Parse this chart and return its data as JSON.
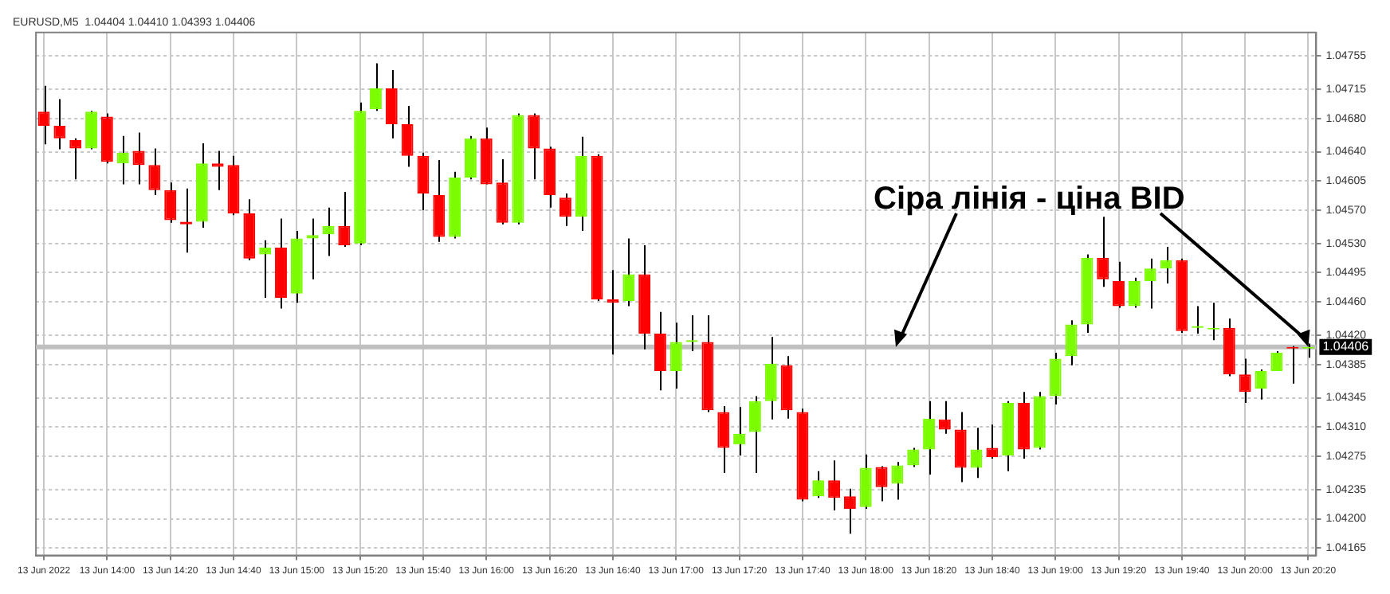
{
  "chart_data": {
    "type": "candlestick",
    "title": "EURUSD,M5  1.04404 1.04410 1.04393 1.04406",
    "annotations": [
      {
        "text": "Сіра лінія - ціна BID",
        "x": "13 Jun 20:20",
        "y": 1.04406
      }
    ],
    "categories": [
      "13 Jun 2022",
      null,
      null,
      null,
      "13 Jun 14:00",
      null,
      null,
      null,
      "13 Jun 14:20",
      null,
      null,
      null,
      "13 Jun 14:40",
      null,
      null,
      null,
      "13 Jun 15:00",
      null,
      null,
      null,
      "13 Jun 15:20",
      null,
      null,
      null,
      "13 Jun 15:40",
      null,
      null,
      null,
      "13 Jun 16:00",
      null,
      null,
      null,
      "13 Jun 16:20",
      null,
      null,
      null,
      "13 Jun 16:40",
      null,
      null,
      null,
      "13 Jun 17:00",
      null,
      null,
      null,
      "13 Jun 17:20",
      null,
      null,
      null,
      "13 Jun 17:40",
      null,
      null,
      null,
      "13 Jun 18:00",
      null,
      null,
      null,
      "13 Jun 18:20",
      null,
      null,
      null,
      "13 Jun 18:40",
      null,
      null,
      null,
      "13 Jun 19:00",
      null,
      null,
      null,
      "13 Jun 19:20",
      null,
      null,
      null,
      "13 Jun 19:40",
      null,
      null,
      null,
      "13 Jun 20:00",
      null,
      null,
      null,
      "13 Jun 20:20"
    ],
    "ohlc": [
      [
        1.04688,
        1.04719,
        1.04649,
        1.04671
      ],
      [
        1.04671,
        1.04703,
        1.04643,
        1.04656
      ],
      [
        1.04654,
        1.04656,
        1.04607,
        1.04644
      ],
      [
        1.04644,
        1.04689,
        1.04643,
        1.04688
      ],
      [
        1.04682,
        1.04686,
        1.04626,
        1.04628
      ],
      [
        1.04626,
        1.04659,
        1.04601,
        1.04639
      ],
      [
        1.04641,
        1.04663,
        1.04601,
        1.04624
      ],
      [
        1.04624,
        1.04644,
        1.04588,
        1.04594
      ],
      [
        1.04594,
        1.04603,
        1.04555,
        1.04558
      ],
      [
        1.04556,
        1.04596,
        1.04519,
        1.04553
      ],
      [
        1.04556,
        1.0465,
        1.04549,
        1.04626
      ],
      [
        1.04626,
        1.04641,
        1.04594,
        1.04622
      ],
      [
        1.04624,
        1.04635,
        1.04564,
        1.04566
      ],
      [
        1.04566,
        1.04583,
        1.0451,
        1.04512
      ],
      [
        1.04517,
        1.04534,
        1.04465,
        1.04525
      ],
      [
        1.04525,
        1.0456,
        1.04452,
        1.04465
      ],
      [
        1.0447,
        1.04545,
        1.04459,
        1.04536
      ],
      [
        1.04536,
        1.0456,
        1.04487,
        1.0454
      ],
      [
        1.04541,
        1.04573,
        1.04515,
        1.04551
      ],
      [
        1.04551,
        1.04592,
        1.04526,
        1.04528
      ],
      [
        1.0453,
        1.04699,
        1.04528,
        1.04689
      ],
      [
        1.04691,
        1.04746,
        1.04689,
        1.04716
      ],
      [
        1.04716,
        1.04738,
        1.04656,
        1.04673
      ],
      [
        1.04673,
        1.04695,
        1.04622,
        1.04635
      ],
      [
        1.04635,
        1.04639,
        1.0457,
        1.0459
      ],
      [
        1.04588,
        1.0463,
        1.04532,
        1.04538
      ],
      [
        1.04538,
        1.04616,
        1.04536,
        1.04609
      ],
      [
        1.04609,
        1.04659,
        1.04607,
        1.04656
      ],
      [
        1.04656,
        1.04669,
        1.04601,
        1.04601
      ],
      [
        1.04603,
        1.04631,
        1.04553,
        1.04555
      ],
      [
        1.04555,
        1.04686,
        1.04553,
        1.04684
      ],
      [
        1.04684,
        1.04686,
        1.04607,
        1.04644
      ],
      [
        1.04644,
        1.04646,
        1.04573,
        1.04588
      ],
      [
        1.04585,
        1.0459,
        1.04551,
        1.04562
      ],
      [
        1.04562,
        1.04658,
        1.04545,
        1.04635
      ],
      [
        1.04635,
        1.04637,
        1.04461,
        1.04463
      ],
      [
        1.04463,
        1.04498,
        1.04397,
        1.04459
      ],
      [
        1.04461,
        1.04536,
        1.04455,
        1.04493
      ],
      [
        1.04493,
        1.04528,
        1.04403,
        1.04422
      ],
      [
        1.04422,
        1.04448,
        1.04354,
        1.04377
      ],
      [
        1.04377,
        1.04435,
        1.04356,
        1.04412
      ],
      [
        1.04412,
        1.04444,
        1.04401,
        1.04414
      ],
      [
        1.04412,
        1.04444,
        1.04328,
        1.0433
      ],
      [
        1.04328,
        1.04335,
        1.04255,
        1.04285
      ],
      [
        1.04289,
        1.04334,
        1.04276,
        1.04302
      ],
      [
        1.04304,
        1.04347,
        1.04255,
        1.04341
      ],
      [
        1.04341,
        1.04418,
        1.04319,
        1.04386
      ],
      [
        1.04384,
        1.04395,
        1.0432,
        1.0433
      ],
      [
        1.04328,
        1.04332,
        1.04221,
        1.04223
      ],
      [
        1.04227,
        1.04257,
        1.04225,
        1.04246
      ],
      [
        1.04246,
        1.0427,
        1.0421,
        1.04225
      ],
      [
        1.04227,
        1.04236,
        1.04182,
        1.04212
      ],
      [
        1.04214,
        1.04277,
        1.04212,
        1.04261
      ],
      [
        1.04262,
        1.04263,
        1.04221,
        1.04238
      ],
      [
        1.04242,
        1.04268,
        1.04223,
        1.04264
      ],
      [
        1.04264,
        1.04285,
        1.04262,
        1.04283
      ],
      [
        1.04283,
        1.04341,
        1.04253,
        1.0432
      ],
      [
        1.04319,
        1.04341,
        1.04302,
        1.04307
      ],
      [
        1.04307,
        1.04328,
        1.04244,
        1.04261
      ],
      [
        1.04261,
        1.04309,
        1.04249,
        1.04283
      ],
      [
        1.04285,
        1.04313,
        1.04272,
        1.04274
      ],
      [
        1.04276,
        1.04341,
        1.04257,
        1.04339
      ],
      [
        1.04339,
        1.04352,
        1.04272,
        1.04283
      ],
      [
        1.04285,
        1.04352,
        1.04283,
        1.04347
      ],
      [
        1.04347,
        1.04399,
        1.04337,
        1.04392
      ],
      [
        1.04395,
        1.04438,
        1.04384,
        1.04433
      ],
      [
        1.04433,
        1.04517,
        1.04423,
        1.04513
      ],
      [
        1.04513,
        1.04562,
        1.04478,
        1.04487
      ],
      [
        1.04485,
        1.04508,
        1.04453,
        1.04455
      ],
      [
        1.04455,
        1.04489,
        1.04453,
        1.04485
      ],
      [
        1.04485,
        1.04512,
        1.04452,
        1.045
      ],
      [
        1.045,
        1.04526,
        1.04482,
        1.0451
      ],
      [
        1.0451,
        1.04512,
        1.04423,
        1.04425
      ],
      [
        1.04429,
        1.04455,
        1.04422,
        1.04431
      ],
      [
        1.04427,
        1.04459,
        1.04414,
        1.04428
      ],
      [
        1.04429,
        1.0444,
        1.04371,
        1.04373
      ],
      [
        1.04373,
        1.04392,
        1.04339,
        1.04352
      ],
      [
        1.04356,
        1.04379,
        1.04343,
        1.04377
      ],
      [
        1.04377,
        1.04401,
        1.04377,
        1.04399
      ],
      [
        1.04405,
        1.04407,
        1.04362,
        1.04404
      ],
      [
        1.04404,
        1.0441,
        1.04393,
        1.04406
      ]
    ],
    "colors": [
      "#ff0000",
      "#ff0000",
      "#ff0000",
      "#7cfc00",
      "#ff0000",
      "#7cfc00",
      "#ff0000",
      "#ff0000",
      "#ff0000",
      "#ff0000",
      "#7cfc00",
      "#ff0000",
      "#ff0000",
      "#ff0000",
      "#7cfc00",
      "#ff0000",
      "#7cfc00",
      "#7cfc00",
      "#7cfc00",
      "#ff0000",
      "#7cfc00",
      "#7cfc00",
      "#ff0000",
      "#ff0000",
      "#ff0000",
      "#ff0000",
      "#7cfc00",
      "#7cfc00",
      "#ff0000",
      "#ff0000",
      "#7cfc00",
      "#ff0000",
      "#ff0000",
      "#ff0000",
      "#7cfc00",
      "#ff0000",
      "#ff0000",
      "#7cfc00",
      "#ff0000",
      "#ff0000",
      "#7cfc00",
      "#7cfc00",
      "#ff0000",
      "#ff0000",
      "#7cfc00",
      "#7cfc00",
      "#7cfc00",
      "#ff0000",
      "#ff0000",
      "#7cfc00",
      "#ff0000",
      "#ff0000",
      "#7cfc00",
      "#ff0000",
      "#7cfc00",
      "#7cfc00",
      "#7cfc00",
      "#ff0000",
      "#ff0000",
      "#7cfc00",
      "#ff0000",
      "#7cfc00",
      "#ff0000",
      "#7cfc00",
      "#7cfc00",
      "#7cfc00",
      "#7cfc00",
      "#ff0000",
      "#ff0000",
      "#7cfc00",
      "#7cfc00",
      "#7cfc00",
      "#ff0000",
      "#7cfc00",
      "#7cfc00",
      "#ff0000",
      "#ff0000",
      "#7cfc00",
      "#7cfc00",
      "#ff0000",
      "#7cfc00"
    ],
    "ylim": [
      1.04156,
      1.04783
    ],
    "yticks": [
      1.04755,
      1.04715,
      {
        "value": 1.0468,
        "label": "1.04680"
      },
      {
        "value": 1.0464,
        "label": "1.04640"
      },
      1.04605,
      {
        "value": 1.0457,
        "label": "1.04570"
      },
      {
        "value": 1.0453,
        "label": "1.04530"
      },
      1.04495,
      {
        "value": 1.0446,
        "label": "1.04460"
      },
      {
        "value": 1.0442,
        "label": "1.04420"
      },
      1.04385,
      1.04345,
      {
        "value": 1.0431,
        "label": "1.04310"
      },
      1.04275,
      1.04235,
      {
        "value": 1.042,
        "label": "1.04200"
      },
      1.04165
    ],
    "ref_lines": [
      {
        "axis": "y",
        "value": 1.04406,
        "label": "1.04406",
        "color": "#c0c0c0"
      }
    ],
    "grid": true
  }
}
